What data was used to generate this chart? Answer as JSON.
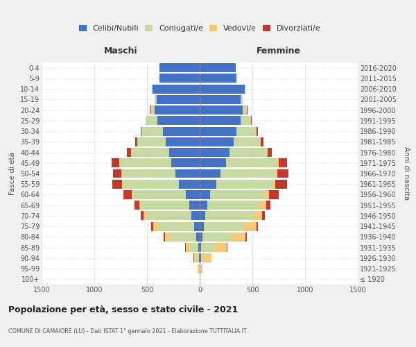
{
  "age_groups": [
    "100+",
    "95-99",
    "90-94",
    "85-89",
    "80-84",
    "75-79",
    "70-74",
    "65-69",
    "60-64",
    "55-59",
    "50-54",
    "45-49",
    "40-44",
    "35-39",
    "30-34",
    "25-29",
    "20-24",
    "15-19",
    "10-14",
    "5-9",
    "0-4"
  ],
  "birth_years": [
    "≤ 1920",
    "1921-1925",
    "1926-1930",
    "1931-1935",
    "1936-1940",
    "1941-1945",
    "1946-1950",
    "1951-1955",
    "1956-1960",
    "1961-1965",
    "1966-1970",
    "1971-1975",
    "1976-1980",
    "1981-1985",
    "1986-1990",
    "1991-1995",
    "1996-2000",
    "2001-2005",
    "2006-2010",
    "2011-2015",
    "2016-2020"
  ],
  "colors": {
    "celibi": "#4472c4",
    "coniugati": "#c5d9a0",
    "vedovi": "#f5c97a",
    "divorziati": "#c0392b"
  },
  "males": {
    "celibi": [
      0,
      2,
      5,
      10,
      30,
      50,
      80,
      100,
      130,
      200,
      230,
      270,
      290,
      320,
      350,
      400,
      430,
      410,
      450,
      380,
      380
    ],
    "coniugati": [
      0,
      5,
      20,
      80,
      250,
      350,
      420,
      450,
      500,
      530,
      510,
      490,
      360,
      270,
      200,
      110,
      40,
      15,
      5,
      0,
      0
    ],
    "vedovi": [
      0,
      10,
      30,
      40,
      50,
      40,
      30,
      20,
      15,
      10,
      5,
      3,
      1,
      0,
      0,
      0,
      0,
      0,
      0,
      0,
      0
    ],
    "divorziati": [
      0,
      0,
      2,
      5,
      15,
      20,
      30,
      50,
      80,
      90,
      80,
      70,
      40,
      20,
      10,
      5,
      2,
      0,
      0,
      0,
      0
    ]
  },
  "females": {
    "celibi": [
      1,
      3,
      10,
      15,
      25,
      40,
      55,
      70,
      100,
      160,
      200,
      250,
      280,
      320,
      350,
      390,
      410,
      390,
      430,
      350,
      340
    ],
    "coniugati": [
      0,
      5,
      30,
      120,
      280,
      380,
      450,
      490,
      510,
      530,
      520,
      490,
      360,
      260,
      190,
      100,
      40,
      15,
      5,
      0,
      0
    ],
    "vedovi": [
      2,
      20,
      70,
      120,
      130,
      120,
      90,
      70,
      50,
      30,
      20,
      10,
      5,
      2,
      1,
      0,
      0,
      0,
      0,
      0,
      0
    ],
    "divorziati": [
      0,
      0,
      2,
      5,
      10,
      15,
      25,
      40,
      90,
      110,
      100,
      80,
      40,
      20,
      10,
      5,
      2,
      0,
      0,
      0,
      0
    ]
  },
  "xlim": 1500,
  "title": "Popolazione per età, sesso e stato civile - 2021",
  "subtitle": "COMUNE DI CAMAIORE (LU) - Dati ISTAT 1° gennaio 2021 - Elaborazione TUTTITALIA.IT",
  "xlabel_left": "Maschi",
  "xlabel_right": "Femmine",
  "ylabel_left": "Fasce di età",
  "ylabel_right": "Anni di nascita",
  "bg_color": "#f0f0f0",
  "plot_bg": "#ffffff",
  "legend_labels": [
    "Celibi/Nubili",
    "Coniugati/e",
    "Vedovi/e",
    "Divorziati/e"
  ]
}
